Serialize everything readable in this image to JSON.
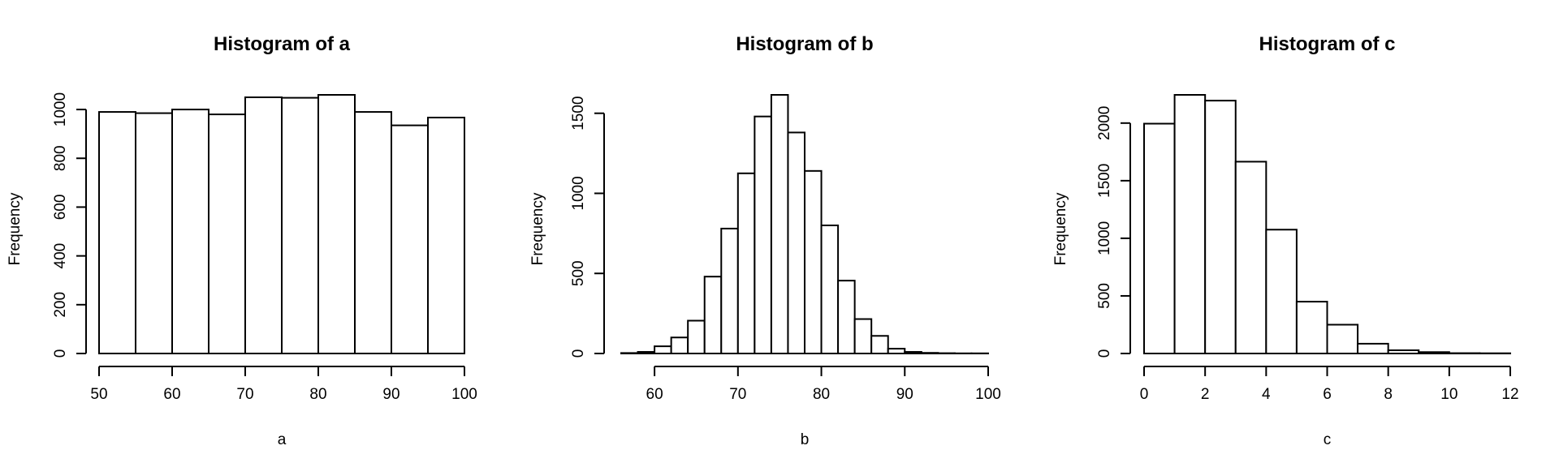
{
  "chart_data": [
    {
      "type": "bar",
      "title": "Histogram of a",
      "xlabel": "a",
      "ylabel": "Frequency",
      "bin_edges": [
        50,
        55,
        60,
        65,
        70,
        75,
        80,
        85,
        90,
        95,
        100
      ],
      "values": [
        990,
        985,
        1000,
        980,
        1050,
        1048,
        1060,
        990,
        935,
        967
      ],
      "xlim": [
        50,
        100
      ],
      "ylim": [
        0,
        1060
      ],
      "x_ticks": [
        50,
        60,
        70,
        80,
        90,
        100
      ],
      "y_ticks": [
        0,
        200,
        400,
        600,
        800,
        1000
      ]
    },
    {
      "type": "bar",
      "title": "Histogram of b",
      "xlabel": "b",
      "ylabel": "Frequency",
      "bin_edges": [
        56,
        58,
        60,
        62,
        64,
        66,
        68,
        70,
        72,
        74,
        76,
        78,
        80,
        82,
        84,
        86,
        88,
        90,
        92,
        94,
        96,
        98,
        100
      ],
      "values": [
        3,
        10,
        45,
        100,
        205,
        480,
        780,
        1125,
        1480,
        1615,
        1380,
        1140,
        800,
        455,
        215,
        110,
        30,
        10,
        4,
        2,
        1,
        1
      ],
      "xlim": [
        56,
        100
      ],
      "ylim": [
        0,
        1615
      ],
      "x_ticks": [
        60,
        70,
        80,
        90,
        100
      ],
      "y_ticks": [
        0,
        500,
        1000,
        1500
      ]
    },
    {
      "type": "bar",
      "title": "Histogram of c",
      "xlabel": "c",
      "ylabel": "Frequency",
      "bin_edges": [
        0,
        1,
        2,
        3,
        4,
        5,
        6,
        7,
        8,
        9,
        10,
        11,
        12
      ],
      "values": [
        1995,
        2245,
        2195,
        1665,
        1075,
        450,
        250,
        85,
        28,
        12,
        3,
        2
      ],
      "xlim": [
        0,
        12
      ],
      "ylim": [
        0,
        2245
      ],
      "x_ticks": [
        0,
        2,
        4,
        6,
        8,
        10,
        12
      ],
      "y_ticks": [
        0,
        500,
        1000,
        1500,
        2000
      ]
    }
  ]
}
